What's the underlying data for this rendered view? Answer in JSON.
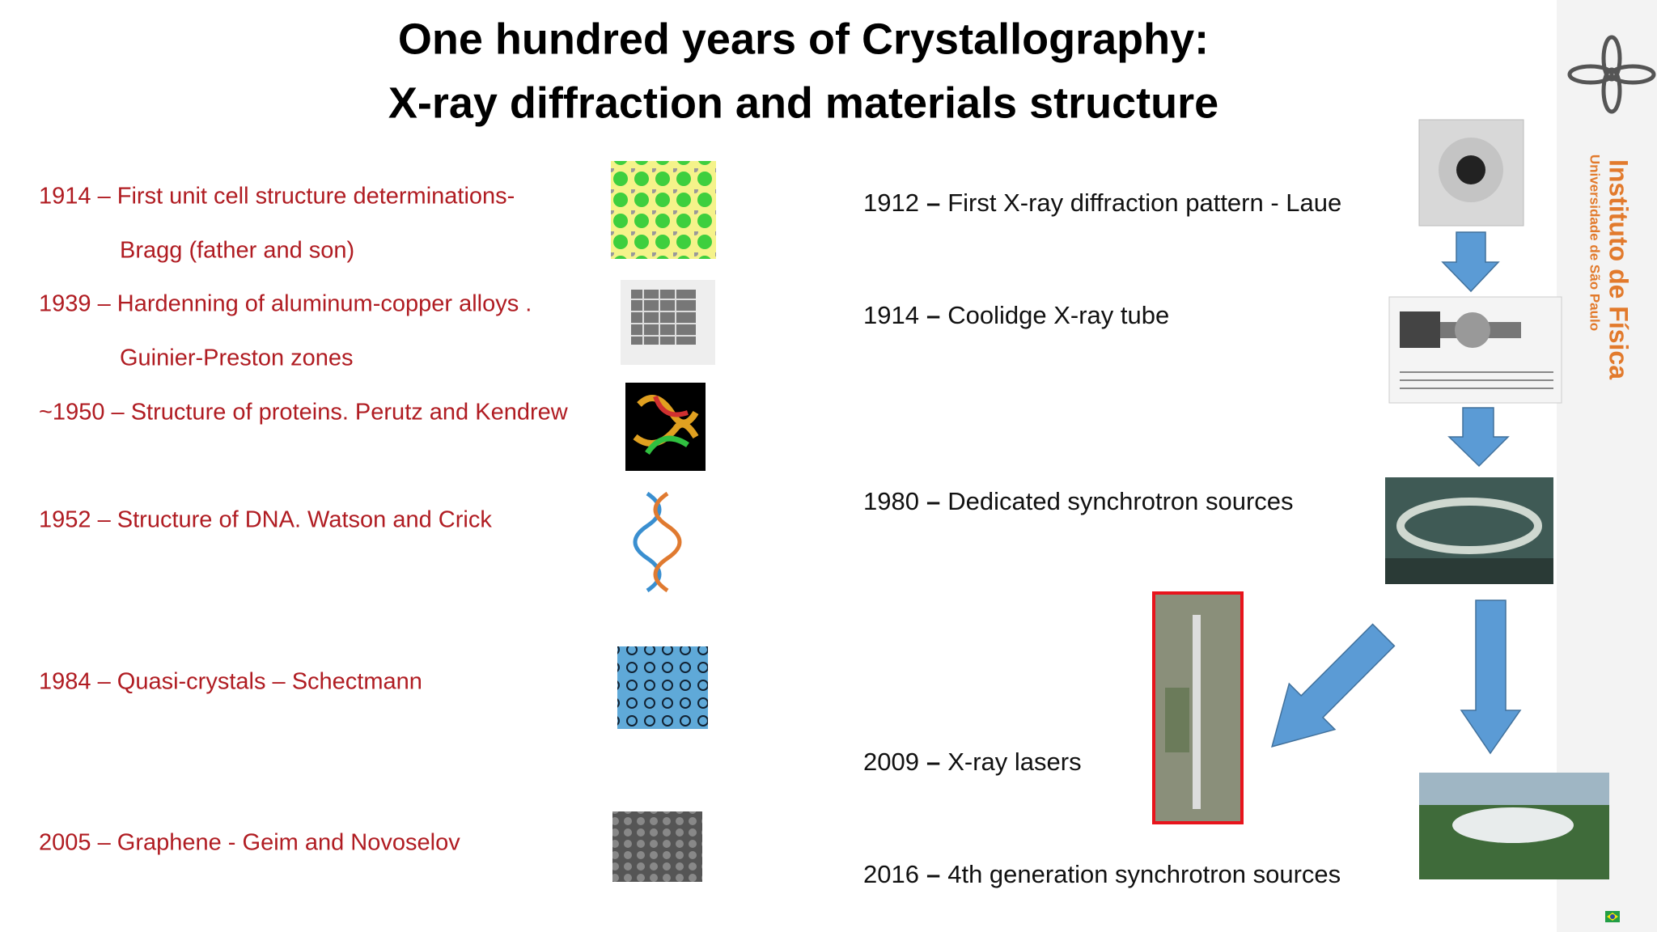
{
  "header": {
    "title_lines": [
      "One hundred years of Crystallography:",
      "X-ray diffraction and materials structure"
    ]
  },
  "left_items": [
    {
      "lines": [
        "1914 – First unit cell  structure  determinations-",
        "Bragg (father and son)"
      ]
    },
    {
      "lines": [
        "1939 – Hardenning of aluminum-copper alloys .",
        "Guinier-Preston zones"
      ]
    },
    {
      "lines": [
        "~1950 – Structure of proteins.  Perutz and Kendrew"
      ]
    },
    {
      "lines": [
        "1952 – Structure of DNA.  Watson and Crick"
      ]
    },
    {
      "lines": [
        "1984 – Quasi-crystals – Schectmann"
      ]
    },
    {
      "lines": [
        "2005 – Graphene - Geim and Novoselov"
      ]
    }
  ],
  "right_items": [
    {
      "year": "1912",
      "dash": "–",
      "text": "First  X-ray diffraction pattern - Laue"
    },
    {
      "year": "1914",
      "dash": "–",
      "text": "Coolidge X-ray tube"
    },
    {
      "year": "1980",
      "dash": "–",
      "text": "Dedicated synchrotron sources"
    },
    {
      "year": "2009",
      "dash": "–",
      "text": "X-ray lasers"
    },
    {
      "year": "2016",
      "dash": "–",
      "text": "4th generation synchrotron sources"
    }
  ],
  "sidebar": {
    "institute": "Instituto de Física",
    "university": "Universidade de São Paulo"
  }
}
